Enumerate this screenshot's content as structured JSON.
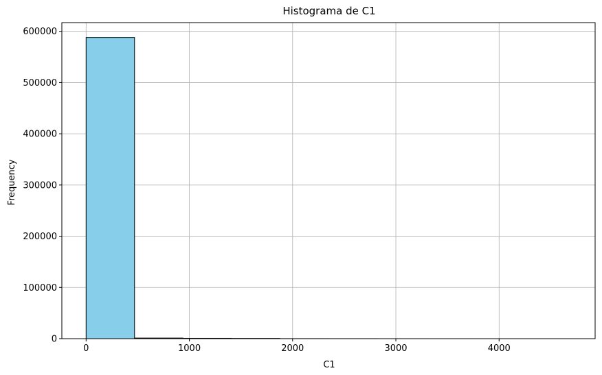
{
  "chart_data": {
    "type": "bar",
    "title": "Histograma de C1",
    "xlabel": "C1",
    "ylabel": "Frequency",
    "xlim": [
      -235,
      4930
    ],
    "ylim": [
      0,
      617000
    ],
    "xticks": [
      0,
      1000,
      2000,
      3000,
      4000
    ],
    "yticks": [
      0,
      100000,
      200000,
      300000,
      400000,
      500000,
      600000
    ],
    "xtick_labels": [
      "0",
      "1000",
      "2000",
      "3000",
      "4000"
    ],
    "ytick_labels": [
      "0",
      "100000",
      "200000",
      "300000",
      "400000",
      "500000",
      "600000"
    ],
    "grid": true,
    "bar_color": "#87CEEB",
    "edge_color": "#000000",
    "bins": [
      {
        "start": 0,
        "end": 469,
        "value": 588000
      },
      {
        "start": 469,
        "end": 938,
        "value": 1200
      },
      {
        "start": 938,
        "end": 1407,
        "value": 700
      },
      {
        "start": 1407,
        "end": 1876,
        "value": 500
      },
      {
        "start": 1876,
        "end": 2345,
        "value": 100
      },
      {
        "start": 2345,
        "end": 2814,
        "value": 60
      },
      {
        "start": 2814,
        "end": 3283,
        "value": 30
      },
      {
        "start": 3283,
        "end": 3752,
        "value": 20
      },
      {
        "start": 3752,
        "end": 4221,
        "value": 10
      },
      {
        "start": 4221,
        "end": 4690,
        "value": 10
      }
    ]
  }
}
